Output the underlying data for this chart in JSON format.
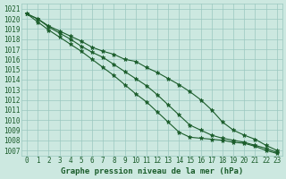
{
  "xlabel": "Graphe pression niveau de la mer (hPa)",
  "xlim": [
    -0.5,
    23.5
  ],
  "ylim": [
    1006.5,
    1021.5
  ],
  "yticks": [
    1007,
    1008,
    1009,
    1010,
    1011,
    1012,
    1013,
    1014,
    1015,
    1016,
    1017,
    1018,
    1019,
    1020,
    1021
  ],
  "xticks": [
    0,
    1,
    2,
    3,
    4,
    5,
    6,
    7,
    8,
    9,
    10,
    11,
    12,
    13,
    14,
    15,
    16,
    17,
    18,
    19,
    20,
    21,
    22,
    23
  ],
  "background_color": "#cce8e0",
  "grid_color": "#9ac8c0",
  "line_color": "#1a5c2a",
  "marker": "*",
  "series": [
    [
      1020.5,
      1020.0,
      1019.3,
      1018.8,
      1018.3,
      1017.8,
      1017.2,
      1016.8,
      1016.5,
      1016.0,
      1015.8,
      1015.2,
      1014.7,
      1014.1,
      1013.5,
      1012.8,
      1012.0,
      1011.0,
      1009.8,
      1009.0,
      1008.5,
      1008.1,
      1007.5,
      1007.0
    ],
    [
      1020.5,
      1020.0,
      1019.2,
      1018.6,
      1018.0,
      1017.3,
      1016.7,
      1016.2,
      1015.5,
      1014.8,
      1014.1,
      1013.4,
      1012.5,
      1011.5,
      1010.5,
      1009.5,
      1009.0,
      1008.5,
      1008.2,
      1008.0,
      1007.8,
      1007.5,
      1007.2,
      1006.8
    ],
    [
      1020.5,
      1019.7,
      1018.9,
      1018.2,
      1017.5,
      1016.8,
      1016.0,
      1015.2,
      1014.4,
      1013.5,
      1012.6,
      1011.8,
      1010.8,
      1009.8,
      1008.8,
      1008.3,
      1008.2,
      1008.1,
      1008.0,
      1007.8,
      1007.7,
      1007.4,
      1007.0,
      1006.7
    ]
  ]
}
